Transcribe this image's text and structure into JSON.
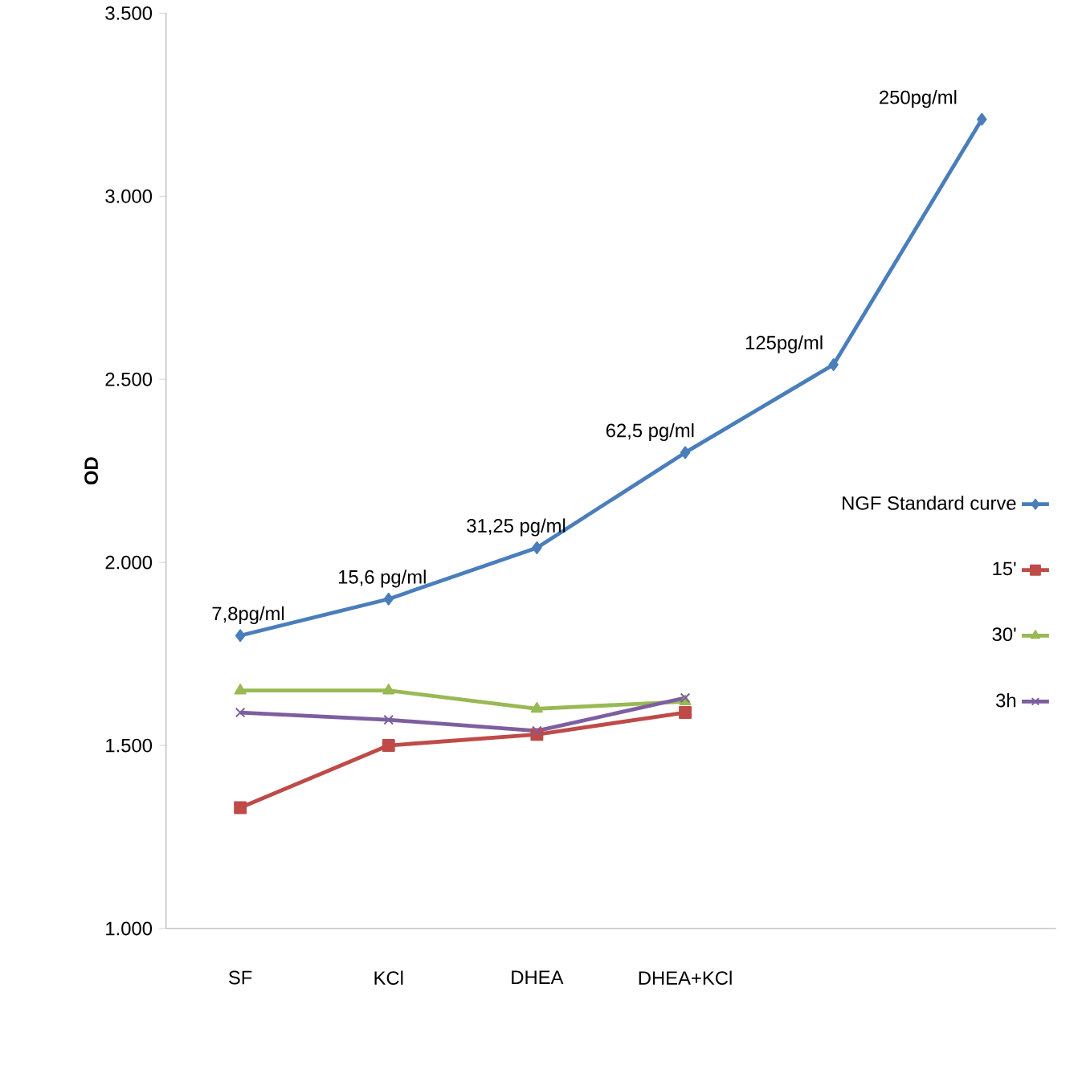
{
  "chart_data": {
    "type": "line",
    "ylabel": "OD",
    "categories": [
      "SF",
      "KCl",
      "DHEA",
      "DHEA+KCl",
      null,
      null
    ],
    "series": [
      {
        "name": "NGF Standard curve",
        "color": "#4a7ebb",
        "marker": "diamond",
        "values": [
          1800,
          1900,
          2040,
          2300,
          2540,
          3210
        ]
      },
      {
        "name": "15'",
        "color": "#be4b48",
        "marker": "square",
        "values": [
          1330,
          1500,
          1530,
          1590,
          null,
          null
        ]
      },
      {
        "name": "30'",
        "color": "#98b954",
        "marker": "triangle",
        "values": [
          1650,
          1650,
          1600,
          1620,
          null,
          null
        ]
      },
      {
        "name": "3h",
        "color": "#7d5fa0",
        "marker": "cross",
        "values": [
          1590,
          1570,
          1540,
          1630,
          null,
          null
        ]
      }
    ],
    "ylim": [
      1000,
      3500
    ],
    "yticks": [
      {
        "value": 1000,
        "label": "1.000"
      },
      {
        "value": 1500,
        "label": "1.500"
      },
      {
        "value": 2000,
        "label": "2.000"
      },
      {
        "value": 2500,
        "label": "2.500"
      },
      {
        "value": 3000,
        "label": "3.000"
      },
      {
        "value": 3500,
        "label": "3.500"
      }
    ],
    "annotations": [
      "7,8pg/ml",
      "15,6 pg/ml",
      "31,25 pg/ml",
      "62,5 pg/ml",
      "125pg/ml",
      "250pg/ml"
    ],
    "legend": "right",
    "grid": false,
    "line_style": "solid"
  }
}
